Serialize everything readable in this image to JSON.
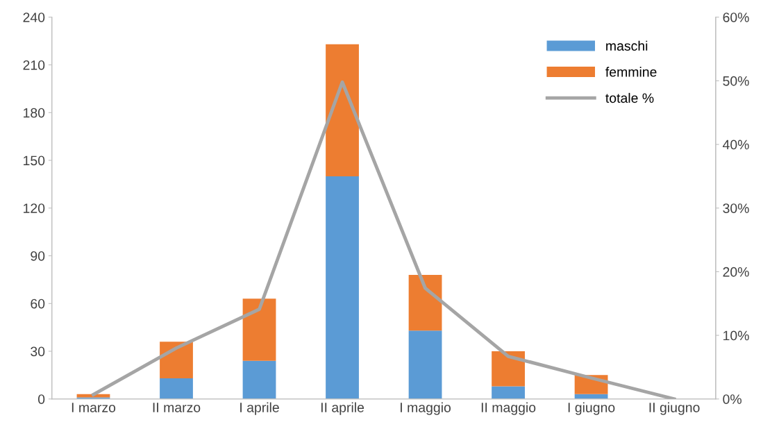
{
  "chart_data": {
    "type": "bar",
    "stacked": true,
    "categories": [
      "I marzo",
      "II marzo",
      "I aprile",
      "II aprile",
      "I maggio",
      "II maggio",
      "I giugno",
      "II giugno"
    ],
    "series": [
      {
        "name": "maschi",
        "color": "#5b9bd5",
        "values": [
          1,
          13,
          24,
          140,
          43,
          8,
          3,
          0
        ]
      },
      {
        "name": "femmine",
        "color": "#ed7d31",
        "values": [
          2,
          23,
          39,
          83,
          35,
          22,
          12,
          0
        ]
      },
      {
        "name": "totale %",
        "type": "line",
        "axis": "y2",
        "color": "#a5a5a5",
        "values": [
          0.7,
          8.0,
          14.1,
          49.8,
          17.4,
          6.7,
          3.3,
          0
        ]
      }
    ],
    "ylim": [
      0,
      240
    ],
    "yticks": [
      0,
      30,
      60,
      90,
      120,
      150,
      180,
      210,
      240
    ],
    "y2lim": [
      0,
      60
    ],
    "y2ticks": [
      {
        "value": 0,
        "label": "0%"
      },
      {
        "value": 10,
        "label": "10%"
      },
      {
        "value": 20,
        "label": "20%"
      },
      {
        "value": 30,
        "label": "30%"
      },
      {
        "value": 40,
        "label": "40%"
      },
      {
        "value": 50,
        "label": "50%"
      },
      {
        "value": 60,
        "label": "60%"
      }
    ],
    "legend": "top right",
    "grid": false,
    "marker": "none",
    "line_style": "solid"
  }
}
